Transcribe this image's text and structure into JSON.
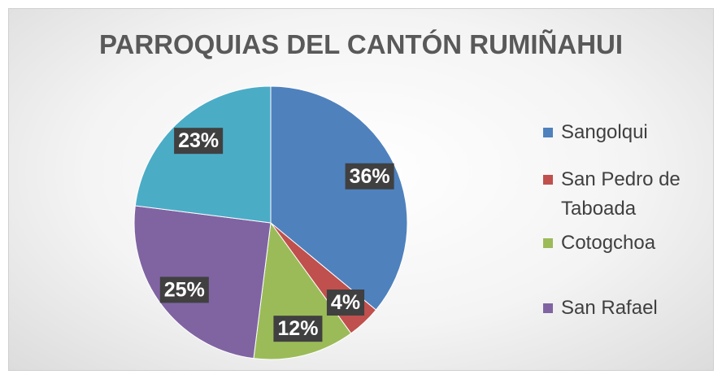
{
  "chart_data": {
    "type": "pie",
    "title": "PARROQUIAS DEL CANTÓN RUMIÑAHUI",
    "categories": [
      "Sangolqui",
      "San Pedro de Taboada",
      "Cotogchoa",
      "San Rafael",
      null
    ],
    "values": [
      36,
      4,
      12,
      25,
      23
    ],
    "value_labels": [
      "36%",
      "4%",
      "12%",
      "25%",
      "23%"
    ],
    "colors": [
      "#4f81bd",
      "#c0504d",
      "#9bbb59",
      "#8064a2",
      "#4bacc6"
    ],
    "legend": "right"
  }
}
